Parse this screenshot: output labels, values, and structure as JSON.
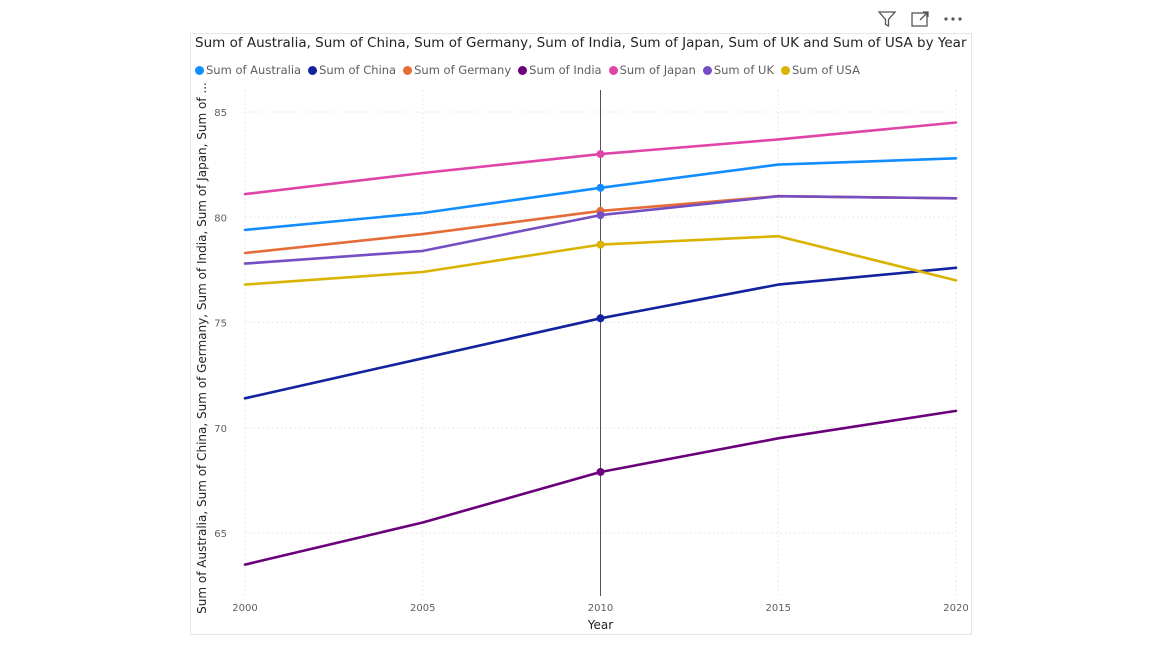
{
  "toolbar": {
    "icons": [
      "filter-icon",
      "focus-mode-icon",
      "more-options-icon"
    ]
  },
  "chart_data": {
    "type": "line",
    "title": "Sum of Australia, Sum of China, Sum of Germany, Sum of India, Sum of Japan, Sum of UK and Sum of USA by Year",
    "xlabel": "Year",
    "ylabel": "Sum of Australia, Sum of China, Sum of Germany, Sum of India, Sum of Japan, Sum of ...",
    "x": [
      2000,
      2005,
      2010,
      2015,
      2020
    ],
    "ylim": [
      62.5,
      86
    ],
    "yticks": [
      65,
      70,
      75,
      80,
      85
    ],
    "grid": true,
    "legend_position": "top-left",
    "highlight_x": 2010,
    "series": [
      {
        "name": "Sum of Australia",
        "color": "#118DFF",
        "values": [
          79.4,
          80.2,
          81.4,
          82.5,
          82.8
        ]
      },
      {
        "name": "Sum of China",
        "color": "#12239E",
        "values": [
          71.4,
          73.3,
          75.2,
          76.8,
          77.6
        ]
      },
      {
        "name": "Sum of Germany",
        "color": "#E66C37",
        "values": [
          78.3,
          79.2,
          80.3,
          81.0,
          80.9
        ]
      },
      {
        "name": "Sum of India",
        "color": "#6B007B",
        "values": [
          63.5,
          65.5,
          67.9,
          69.5,
          70.8
        ]
      },
      {
        "name": "Sum of Japan",
        "color": "#E044A7",
        "values": [
          81.1,
          82.1,
          83.0,
          83.7,
          84.5
        ]
      },
      {
        "name": "Sum of UK",
        "color": "#744EC2",
        "values": [
          77.8,
          78.4,
          80.1,
          81.0,
          80.9
        ]
      },
      {
        "name": "Sum of USA",
        "color": "#D9B300",
        "values": [
          76.8,
          77.4,
          78.7,
          79.1,
          77.0
        ]
      }
    ]
  }
}
